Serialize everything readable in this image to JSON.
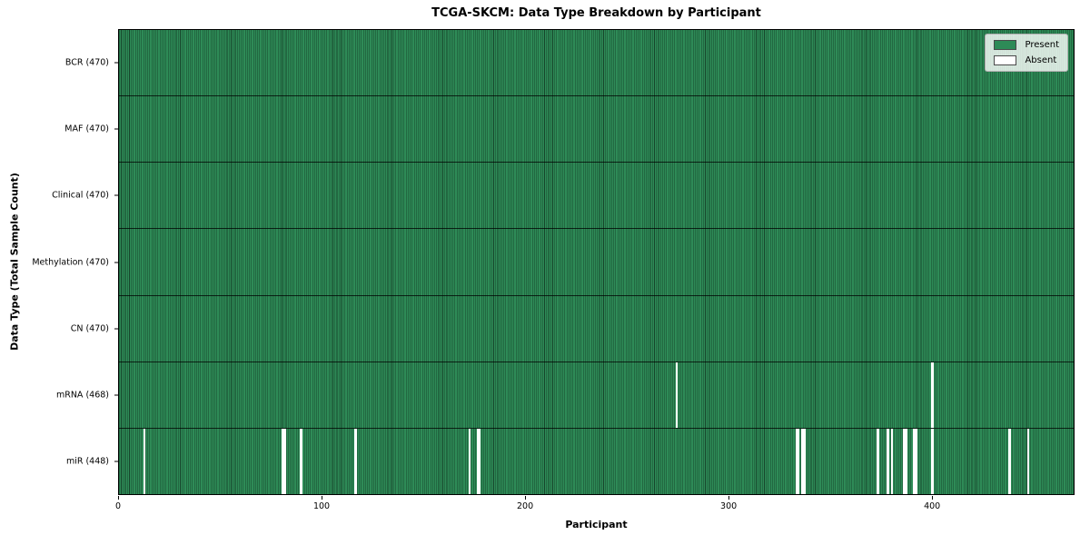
{
  "chart_data": {
    "type": "heatmap",
    "title": "TCGA-SKCM: Data Type Breakdown by Participant",
    "xlabel": "Participant",
    "ylabel": "Data Type (Total Sample Count)",
    "x_range": [
      0,
      470
    ],
    "x_ticks": [
      0,
      100,
      200,
      300,
      400
    ],
    "n_participants": 470,
    "grid": false,
    "legend": {
      "position": "upper right",
      "present_label": "Present",
      "absent_label": "Absent"
    },
    "colors": {
      "present": "#2e8b57",
      "absent": "#ffffff"
    },
    "rows": [
      {
        "label": "BCR (470)",
        "total": 470,
        "absent_participants": []
      },
      {
        "label": "MAF (470)",
        "total": 470,
        "absent_participants": []
      },
      {
        "label": "Clinical (470)",
        "total": 470,
        "absent_participants": []
      },
      {
        "label": "Methylation (470)",
        "total": 470,
        "absent_participants": []
      },
      {
        "label": "CN (470)",
        "total": 470,
        "absent_participants": []
      },
      {
        "label": "mRNA (468)",
        "total": 468,
        "absent_participants": [
          274,
          400
        ]
      },
      {
        "label": "miR (448)",
        "total": 448,
        "absent_participants": [
          12,
          80,
          81,
          89,
          116,
          172,
          176,
          177,
          333,
          334,
          336,
          337,
          373,
          378,
          380,
          386,
          387,
          391,
          392,
          400,
          438,
          447
        ]
      }
    ]
  }
}
